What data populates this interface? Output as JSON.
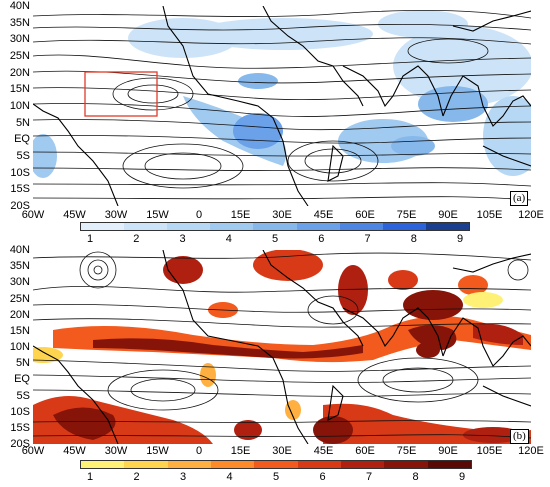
{
  "panel_a": {
    "label": "(a)",
    "lat_labels": [
      "40N",
      "35N",
      "30N",
      "25N",
      "20N",
      "15N",
      "10N",
      "5N",
      "EQ",
      "5S",
      "10S",
      "15S",
      "20S"
    ],
    "lon_labels": [
      "60W",
      "45W",
      "30W",
      "15W",
      "0",
      "15E",
      "30E",
      "45E",
      "60E",
      "75E",
      "90E",
      "105E",
      "120E"
    ],
    "colorbar": {
      "labels": [
        "1",
        "2",
        "3",
        "4",
        "5",
        "6",
        "7",
        "8",
        "9"
      ],
      "colors": [
        "#e3f0fc",
        "#cde4f8",
        "#b7d8f4",
        "#a0caf0",
        "#86b8ec",
        "#6aa1e8",
        "#4d86e2",
        "#2d63da",
        "#1a3f8f"
      ]
    },
    "highlight_box_color": "#e03a2a"
  },
  "panel_b": {
    "label": "(b)",
    "lat_labels": [
      "40N",
      "35N",
      "30N",
      "25N",
      "20N",
      "15N",
      "10N",
      "5N",
      "EQ",
      "5S",
      "10S",
      "15S",
      "20S"
    ],
    "lon_labels": [
      "60W",
      "45W",
      "30W",
      "15W",
      "0",
      "15E",
      "30E",
      "45E",
      "60E",
      "75E",
      "90E",
      "105E",
      "120E"
    ],
    "colorbar": {
      "labels": [
        "1",
        "2",
        "3",
        "4",
        "5",
        "6",
        "7",
        "8",
        "9"
      ],
      "colors": [
        "#fff176",
        "#ffd54f",
        "#ffb040",
        "#ff8a2a",
        "#f25a1e",
        "#d83a18",
        "#b02010",
        "#861408",
        "#5a0a04"
      ]
    }
  }
}
